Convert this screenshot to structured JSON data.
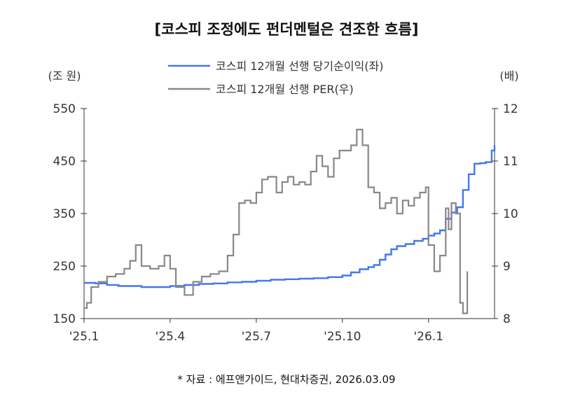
{
  "title": "[코스피 조정에도 펀더멘털은 견조한 흐름]",
  "source": "* 자료 : 에프앤가이드, 현대차증권, 2026.03.09",
  "chart_data": {
    "type": "line",
    "title": "[코스피 조정에도 펀더멘털은 견조한 흐름]",
    "left_axis": {
      "unit": "(조 원)",
      "ylim": [
        150,
        550
      ],
      "ticks": [
        550,
        450,
        350,
        250,
        150
      ]
    },
    "right_axis": {
      "unit": "(배)",
      "ylim": [
        8,
        12
      ],
      "ticks": [
        12,
        11,
        10,
        9,
        8
      ]
    },
    "x_axis": {
      "labels": [
        "'25.1",
        "'25.4",
        "'25.7",
        "'25.10",
        "'26.1"
      ],
      "tick_positions": [
        0,
        3,
        6,
        9,
        12
      ],
      "xlim": [
        0,
        14.3
      ]
    },
    "legend": {
      "placement": "top-center"
    },
    "series": [
      {
        "name": "코스피 12개월 선행 당기순이익(좌)",
        "axis": "left",
        "color": "#4477ee",
        "points": [
          [
            0,
            218
          ],
          [
            0.4,
            217
          ],
          [
            0.8,
            214
          ],
          [
            1.2,
            212
          ],
          [
            1.6,
            212
          ],
          [
            2.0,
            210
          ],
          [
            2.5,
            210
          ],
          [
            3.0,
            212
          ],
          [
            3.5,
            214
          ],
          [
            4.0,
            216
          ],
          [
            4.5,
            217
          ],
          [
            5.0,
            219
          ],
          [
            5.5,
            220
          ],
          [
            6.0,
            222
          ],
          [
            6.5,
            224
          ],
          [
            7.0,
            225
          ],
          [
            7.5,
            226
          ],
          [
            8.0,
            227
          ],
          [
            8.5,
            229
          ],
          [
            9.0,
            232
          ],
          [
            9.3,
            238
          ],
          [
            9.6,
            244
          ],
          [
            9.9,
            248
          ],
          [
            10.1,
            252
          ],
          [
            10.3,
            262
          ],
          [
            10.5,
            272
          ],
          [
            10.7,
            282
          ],
          [
            10.9,
            288
          ],
          [
            11.2,
            292
          ],
          [
            11.5,
            298
          ],
          [
            11.8,
            302
          ],
          [
            12.0,
            308
          ],
          [
            12.2,
            312
          ],
          [
            12.4,
            318
          ],
          [
            12.6,
            340
          ],
          [
            12.8,
            352
          ],
          [
            13.0,
            362
          ],
          [
            13.2,
            395
          ],
          [
            13.4,
            425
          ],
          [
            13.6,
            445
          ],
          [
            13.8,
            446
          ],
          [
            14.0,
            448
          ],
          [
            14.2,
            470
          ],
          [
            14.3,
            480
          ]
        ]
      },
      {
        "name": "코스피 12개월 선행 PER(우)",
        "axis": "right",
        "color": "#888888",
        "points": [
          [
            0,
            8.2
          ],
          [
            0.1,
            8.3
          ],
          [
            0.25,
            8.6
          ],
          [
            0.5,
            8.7
          ],
          [
            0.8,
            8.8
          ],
          [
            1.1,
            8.85
          ],
          [
            1.4,
            8.95
          ],
          [
            1.6,
            9.1
          ],
          [
            1.8,
            9.4
          ],
          [
            2.0,
            9.0
          ],
          [
            2.3,
            8.95
          ],
          [
            2.6,
            9.0
          ],
          [
            2.8,
            9.2
          ],
          [
            3.0,
            8.95
          ],
          [
            3.2,
            8.6
          ],
          [
            3.5,
            8.45
          ],
          [
            3.8,
            8.7
          ],
          [
            4.1,
            8.8
          ],
          [
            4.4,
            8.85
          ],
          [
            4.7,
            8.9
          ],
          [
            5.0,
            9.2
          ],
          [
            5.2,
            9.6
          ],
          [
            5.4,
            10.2
          ],
          [
            5.6,
            10.25
          ],
          [
            5.8,
            10.2
          ],
          [
            6.0,
            10.4
          ],
          [
            6.2,
            10.65
          ],
          [
            6.4,
            10.7
          ],
          [
            6.7,
            10.4
          ],
          [
            6.9,
            10.6
          ],
          [
            7.1,
            10.7
          ],
          [
            7.3,
            10.55
          ],
          [
            7.5,
            10.6
          ],
          [
            7.7,
            10.55
          ],
          [
            7.9,
            10.8
          ],
          [
            8.1,
            11.1
          ],
          [
            8.3,
            10.9
          ],
          [
            8.5,
            10.7
          ],
          [
            8.7,
            11.05
          ],
          [
            8.9,
            11.2
          ],
          [
            9.1,
            11.2
          ],
          [
            9.3,
            11.3
          ],
          [
            9.5,
            11.6
          ],
          [
            9.7,
            11.3
          ],
          [
            9.9,
            10.5
          ],
          [
            10.1,
            10.4
          ],
          [
            10.3,
            10.1
          ],
          [
            10.5,
            10.2
          ],
          [
            10.7,
            10.3
          ],
          [
            10.9,
            10.0
          ],
          [
            11.1,
            10.25
          ],
          [
            11.3,
            10.15
          ],
          [
            11.5,
            10.3
          ],
          [
            11.7,
            10.4
          ],
          [
            11.9,
            10.5
          ],
          [
            12.0,
            9.4
          ],
          [
            12.2,
            8.9
          ],
          [
            12.4,
            9.2
          ],
          [
            12.6,
            10.1
          ],
          [
            12.7,
            9.7
          ],
          [
            12.8,
            10.2
          ],
          [
            12.95,
            10.0
          ],
          [
            13.1,
            8.3
          ],
          [
            13.2,
            8.1
          ],
          [
            13.35,
            8.9
          ]
        ]
      }
    ]
  }
}
